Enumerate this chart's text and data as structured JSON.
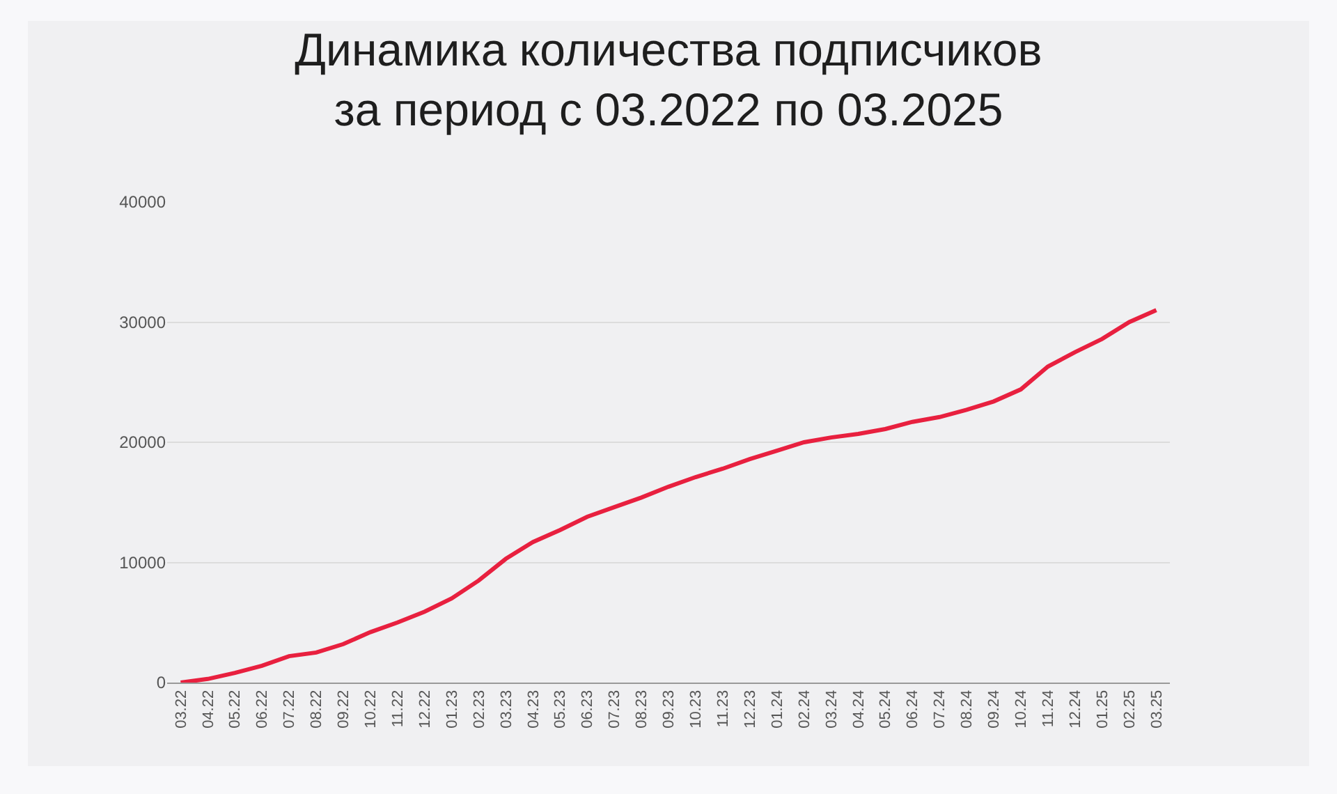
{
  "chart_data": {
    "type": "line",
    "title": "Динамика количества подписчиков\nза период с 03.2022 по 03.2025",
    "categories": [
      "03.22",
      "04.22",
      "05.22",
      "06.22",
      "07.22",
      "08.22",
      "09.22",
      "10.22",
      "11.22",
      "12.22",
      "01.23",
      "02.23",
      "03.23",
      "04.23",
      "05.23",
      "06.23",
      "07.23",
      "08.23",
      "09.23",
      "10.23",
      "11.23",
      "12.23",
      "01.24",
      "02.24",
      "03.24",
      "04.24",
      "05.24",
      "06.24",
      "07.24",
      "08.24",
      "09.24",
      "10.24",
      "11.24",
      "12.24",
      "01.25",
      "02.25",
      "03.25"
    ],
    "series": [
      {
        "color": "#e8203f",
        "values": [
          0,
          300,
          800,
          1400,
          2200,
          2500,
          3200,
          4200,
          5000,
          5900,
          7000,
          8500,
          10300,
          11700,
          12700,
          13800,
          14600,
          15400,
          16300,
          17100,
          17800,
          18600,
          19300,
          20000,
          20400,
          20700,
          21100,
          21700,
          22100,
          22700,
          23400,
          24400,
          26300,
          27500,
          28600,
          30000,
          31000
        ]
      }
    ],
    "ylim": [
      0,
      40000
    ],
    "yticks": [
      0,
      10000,
      20000,
      30000,
      40000
    ],
    "grid": "y",
    "marker": "none",
    "line_style": "solid"
  }
}
